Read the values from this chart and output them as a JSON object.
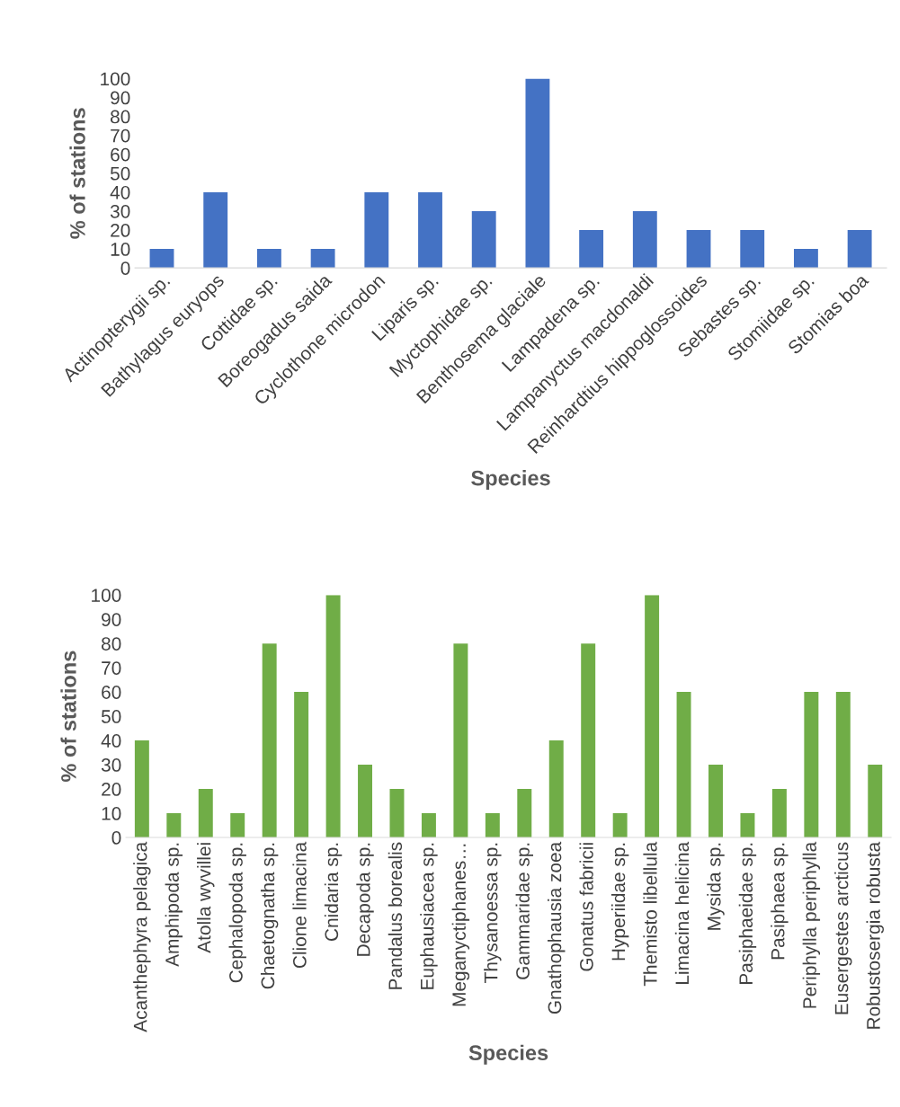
{
  "chart_data": [
    {
      "type": "bar",
      "xlabel": "Species",
      "ylabel": "% of stations",
      "categories": [
        "Actinopterygii sp.",
        "Bathylagus euryops",
        "Cottidae sp.",
        "Boreogadus saida",
        "Cyclothone microdon",
        "Liparis sp.",
        "Myctophidae sp.",
        "Benthosema glaciale",
        "Lampadena sp.",
        "Lampanyctus macdonaldi",
        "Reinhardtius hippoglossoides",
        "Sebastes sp.",
        "Stomiidae sp.",
        "Stomias boa"
      ],
      "values": [
        10,
        40,
        10,
        10,
        40,
        40,
        30,
        100,
        20,
        30,
        20,
        20,
        10,
        20
      ],
      "color": "#4472c4",
      "ylim": [
        0,
        100
      ],
      "yticks": [
        0,
        10,
        20,
        30,
        40,
        50,
        60,
        70,
        80,
        90,
        100
      ],
      "grid": false,
      "legend": false
    },
    {
      "type": "bar",
      "xlabel": "Species",
      "ylabel": "% of stations",
      "categories": [
        "Acanthephyra pelagica",
        "Amphipoda sp.",
        "Atolla wyvillei",
        "Cephalopoda sp.",
        "Chaetognatha sp.",
        "Clione limacina",
        "Cnidaria sp.",
        "Decapoda sp.",
        "Pandalus borealis",
        "Euphausiacea sp.",
        "Meganyctiphanes…",
        "Thysanoessa sp.",
        "Gammaridae sp.",
        "Gnathophausia zoea",
        "Gonatus fabricii",
        "Hyperiidae sp.",
        "Themisto libellula",
        "Limacina helicina",
        "Mysida sp.",
        "Pasiphaeidae sp.",
        "Pasiphaea sp.",
        "Periphylla periphylla",
        "Eusergestes arcticus",
        "Robustosergia robusta"
      ],
      "values": [
        40,
        10,
        20,
        10,
        80,
        60,
        100,
        30,
        20,
        10,
        80,
        10,
        20,
        40,
        80,
        10,
        100,
        60,
        30,
        10,
        20,
        60,
        60,
        30
      ],
      "color": "#70ad47",
      "ylim": [
        0,
        100
      ],
      "yticks": [
        0,
        10,
        20,
        30,
        40,
        50,
        60,
        70,
        80,
        90,
        100
      ],
      "grid": false,
      "legend": false
    }
  ]
}
